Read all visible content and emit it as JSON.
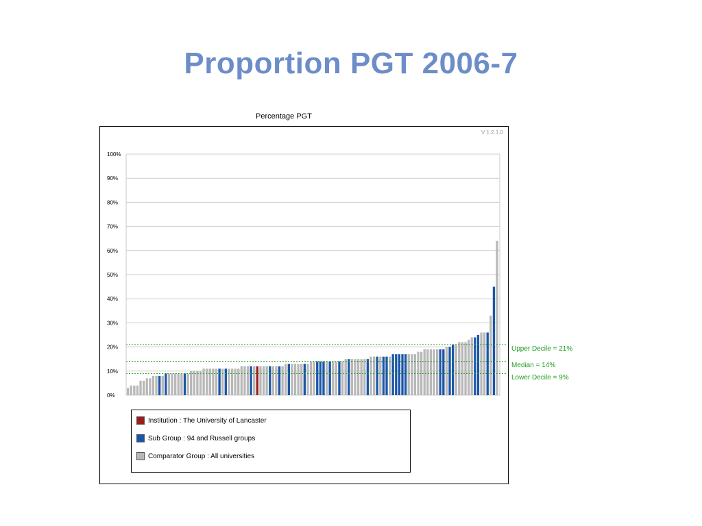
{
  "slide": {
    "title": "Proportion PGT 2006-7"
  },
  "version": "V 1.2.1.0",
  "colors": {
    "institution": "#9b1c1c",
    "subgroup": "#1a56a8",
    "comparator": "#b8b8b8",
    "reference": "#1f9e1f",
    "title": "#6d8dc8"
  },
  "chart_data": {
    "type": "bar",
    "title": "Percentage PGT",
    "xlabel": "",
    "ylabel": "",
    "ylim": [
      0,
      100
    ],
    "yticks": [
      0,
      10,
      20,
      30,
      40,
      50,
      60,
      70,
      80,
      90,
      100
    ],
    "ytick_labels": [
      "0%",
      "10%",
      "20%",
      "30%",
      "40%",
      "50%",
      "60%",
      "70%",
      "80%",
      "90%",
      "100%"
    ],
    "grid": true,
    "legend_position": "bottom",
    "series": [
      {
        "key": "institution",
        "name": "Institution : The University of Lancaster"
      },
      {
        "key": "subgroup",
        "name": "Sub Group : 94 and Russell groups"
      },
      {
        "key": "comparator",
        "name": "Comparator Group : All universities"
      }
    ],
    "values": [
      3,
      4,
      4,
      4,
      6,
      6,
      7,
      7,
      8,
      8,
      8,
      8,
      9,
      9,
      9,
      9,
      9,
      9,
      9,
      9,
      10,
      10,
      10,
      10,
      11,
      11,
      11,
      11,
      11,
      11,
      11,
      11,
      11,
      11,
      11,
      11,
      12,
      12,
      12,
      12,
      12,
      12,
      12,
      12,
      12,
      12,
      12,
      12,
      12,
      12,
      13,
      13,
      13,
      13,
      13,
      13,
      13,
      13,
      14,
      14,
      14,
      14,
      14,
      14,
      14,
      14,
      14,
      14,
      14,
      15,
      15,
      15,
      15,
      15,
      15,
      15,
      15,
      16,
      16,
      16,
      16,
      16,
      16,
      16,
      17,
      17,
      17,
      17,
      17,
      17,
      17,
      17,
      18,
      18,
      19,
      19,
      19,
      19,
      19,
      19,
      19,
      20,
      20,
      21,
      21,
      22,
      22,
      22,
      23,
      24,
      24,
      25,
      26,
      26,
      26,
      33,
      45,
      64
    ],
    "groups": [
      "c",
      "c",
      "c",
      "c",
      "c",
      "c",
      "c",
      "c",
      "c",
      "c",
      "s",
      "c",
      "s",
      "c",
      "c",
      "c",
      "c",
      "c",
      "s",
      "c",
      "c",
      "c",
      "c",
      "c",
      "c",
      "c",
      "c",
      "c",
      "c",
      "s",
      "c",
      "s",
      "c",
      "c",
      "c",
      "c",
      "c",
      "c",
      "c",
      "s",
      "c",
      "i",
      "c",
      "c",
      "c",
      "s",
      "c",
      "c",
      "s",
      "c",
      "c",
      "s",
      "c",
      "c",
      "c",
      "c",
      "s",
      "c",
      "c",
      "c",
      "s",
      "s",
      "s",
      "c",
      "s",
      "c",
      "c",
      "s",
      "c",
      "c",
      "s",
      "c",
      "c",
      "c",
      "c",
      "c",
      "s",
      "c",
      "c",
      "s",
      "c",
      "s",
      "s",
      "c",
      "s",
      "s",
      "s",
      "s",
      "s",
      "c",
      "c",
      "c",
      "c",
      "c",
      "c",
      "c",
      "c",
      "c",
      "c",
      "s",
      "s",
      "c",
      "s",
      "s",
      "c",
      "c",
      "c",
      "c",
      "c",
      "c",
      "s",
      "s",
      "c",
      "c",
      "s",
      "c",
      "s",
      "c"
    ],
    "reference_lines": [
      {
        "name": "Upper Decile",
        "value": 21,
        "label": "Upper Decile = 21%"
      },
      {
        "name": "Median",
        "value": 14,
        "label": "Median = 14%"
      },
      {
        "name": "Lower Decile",
        "value": 9,
        "label": "Lower Decile = 9%"
      }
    ]
  }
}
